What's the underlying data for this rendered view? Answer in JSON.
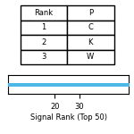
{
  "chart_data": [
    {
      "type": "table",
      "columns": [
        "Rank",
        "P"
      ],
      "rows": [
        [
          "1",
          "C"
        ],
        [
          "2",
          "K"
        ],
        [
          "3",
          "W"
        ]
      ]
    },
    {
      "type": "scatter",
      "xlabel": "Signal Rank (Top 50)",
      "x": [
        1,
        2,
        3,
        4,
        5,
        6,
        7,
        8,
        9,
        10,
        11,
        12,
        13,
        14,
        15,
        16,
        17,
        18,
        19,
        20,
        21,
        22,
        23,
        24,
        25,
        26,
        27,
        28,
        29,
        30,
        31,
        32,
        33,
        34,
        35,
        36,
        37,
        38,
        39,
        40,
        41,
        42,
        43,
        44,
        45,
        46,
        47,
        48,
        49,
        50
      ],
      "values": [
        0,
        0,
        0,
        0,
        0,
        0,
        0,
        0,
        0,
        0,
        0,
        0,
        0,
        0,
        0,
        0,
        0,
        0,
        0,
        0,
        0,
        0,
        0,
        0,
        0,
        0,
        0,
        0,
        0,
        0,
        0,
        0,
        0,
        0,
        0,
        0,
        0,
        0,
        0,
        0,
        0,
        0,
        0,
        0,
        0,
        0,
        0,
        0,
        0,
        0
      ],
      "color": "#4db8e8",
      "marker": "square",
      "xlim": [
        1,
        50
      ],
      "ylim": [
        -0.5,
        0.5
      ],
      "xticks": [
        20,
        30
      ],
      "tick_labels": "x"
    }
  ]
}
